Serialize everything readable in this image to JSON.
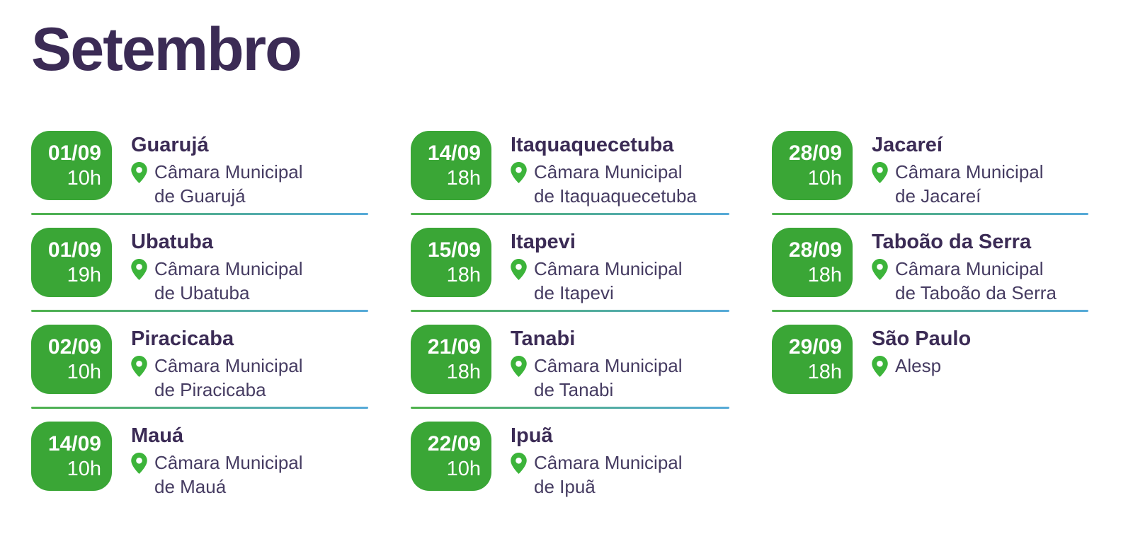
{
  "page": {
    "title": "Setembro"
  },
  "colors": {
    "title_text": "#3B2B55",
    "city_text": "#3B2B55",
    "location_text": "#463C62",
    "badge_green": "#3AA636",
    "badge_text": "#FFFFFF",
    "pin_green": "#3CB43A",
    "divider_green": "#4EB14B",
    "divider_blue": "#56AAD9"
  },
  "columns": [
    {
      "events": [
        {
          "date": "01/09",
          "time": "10h",
          "city": "Guarujá",
          "location": "Câmara Municipal de Guarujá"
        },
        {
          "date": "01/09",
          "time": "19h",
          "city": "Ubatuba",
          "location": "Câmara Municipal de Ubatuba"
        },
        {
          "date": "02/09",
          "time": "10h",
          "city": "Piracicaba",
          "location": "Câmara Municipal de Piracicaba"
        },
        {
          "date": "14/09",
          "time": "10h",
          "city": "Mauá",
          "location": "Câmara Municipal de Mauá"
        }
      ]
    },
    {
      "events": [
        {
          "date": "14/09",
          "time": "18h",
          "city": "Itaquaquecetuba",
          "location": "Câmara Municipal de Itaquaquecetuba"
        },
        {
          "date": "15/09",
          "time": "18h",
          "city": "Itapevi",
          "location": "Câmara Municipal de Itapevi"
        },
        {
          "date": "21/09",
          "time": "18h",
          "city": "Tanabi",
          "location": "Câmara Municipal de Tanabi"
        },
        {
          "date": "22/09",
          "time": "10h",
          "city": "Ipuã",
          "location": "Câmara Municipal de Ipuã"
        }
      ]
    },
    {
      "events": [
        {
          "date": "28/09",
          "time": "10h",
          "city": "Jacareí",
          "location": "Câmara Municipal de Jacareí"
        },
        {
          "date": "28/09",
          "time": "18h",
          "city": "Taboão da Serra",
          "location": "Câmara Municipal de Taboão da Serra"
        },
        {
          "date": "29/09",
          "time": "18h",
          "city": "São Paulo",
          "location": "Alesp"
        }
      ]
    }
  ]
}
